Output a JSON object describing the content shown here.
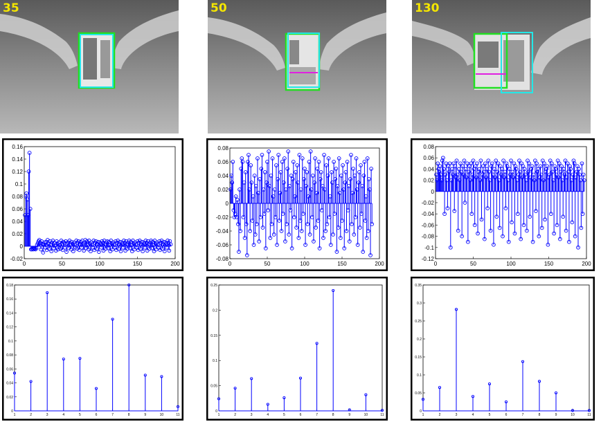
{
  "frames": [
    {
      "label": "35"
    },
    {
      "label": "50"
    },
    {
      "label": "130"
    }
  ],
  "colors": {
    "green_box": "#22e022",
    "cyan_box": "#22e8e8",
    "magenta_line": "#e020e0",
    "label_yellow": "#f5e600",
    "stem_blue": "#0000ff"
  },
  "chart_data": [
    {
      "type": "stem",
      "panel": "middle-left",
      "xlim": [
        0,
        200
      ],
      "ylim": [
        -0.02,
        0.16
      ],
      "xticks": [
        0,
        50,
        100,
        150,
        200
      ],
      "yticks": [
        -0.02,
        0,
        0.02,
        0.04,
        0.06,
        0.08,
        0.1,
        0.12,
        0.14,
        0.16
      ],
      "ytick_labels": [
        "-0.02",
        "0",
        "0.02",
        "0.04",
        "0.06",
        "0.08",
        "0.1",
        "0.12",
        "0.14",
        "0.16"
      ],
      "n": 190,
      "values": [
        0.05,
        0.08,
        0.085,
        0.075,
        0.05,
        0.12,
        0.15,
        0.06,
        -0.005,
        -0.005,
        -0.004,
        -0.005,
        -0.003,
        -0.004,
        -0.005,
        -0.003,
        0.002,
        0.005,
        0.008,
        0.01,
        0.005,
        -0.005,
        0.008,
        0.004,
        -0.01,
        0.003,
        0.006,
        -0.002,
        0.007,
        -0.006,
        0.01,
        0.004,
        -0.004,
        0.008,
        0.002,
        -0.008,
        0.006,
        0.009,
        -0.003,
        0.005,
        0.001,
        -0.007,
        0.008,
        0.004,
        -0.005,
        0.006,
        0.002,
        -0.004,
        0.009,
        0.003,
        -0.006,
        0.007,
        0.005,
        -0.002,
        0.008,
        -0.009,
        0.004,
        0.006,
        -0.003,
        0.009,
        0.002,
        -0.005,
        0.007,
        0.004,
        -0.008,
        0.006,
        0.003,
        -0.002,
        0.009,
        -0.004,
        0.005,
        0.008,
        -0.006,
        0.003,
        0.007,
        -0.002,
        0.009,
        0.004,
        -0.007,
        0.006,
        0.01,
        -0.003,
        0.008,
        0.002,
        -0.005,
        0.009,
        0.004,
        -0.008,
        0.006,
        0.003,
        -0.002,
        0.009,
        -0.006,
        0.005,
        0.008,
        -0.004,
        0.003,
        0.007,
        -0.009,
        0.006,
        0.004,
        -0.002,
        0.008,
        0.005,
        -0.007,
        0.009,
        0.003,
        -0.004,
        0.006,
        0.008,
        -0.003,
        0.007,
        0.002,
        -0.008,
        0.009,
        0.004,
        -0.005,
        0.006,
        0.003,
        -0.002,
        0.008,
        -0.006,
        0.005,
        0.009,
        -0.004,
        0.003,
        0.007,
        -0.008,
        0.006,
        0.004,
        -0.002,
        0.009,
        0.005,
        -0.007,
        0.008,
        0.003,
        -0.004,
        0.006,
        0.009,
        -0.003,
        0.007,
        0.002,
        -0.008,
        0.009,
        0.004,
        -0.005,
        0.006,
        0.003,
        -0.002,
        0.008,
        -0.006,
        0.005,
        0.009,
        -0.004,
        0.003,
        0.007,
        -0.008,
        0.006,
        0.004,
        -0.002,
        0.009,
        0.005,
        -0.007,
        0.008,
        0.003,
        -0.004,
        0.006,
        0.009,
        -0.003,
        0.007,
        0.002,
        -0.008,
        0.009,
        0.004,
        -0.005,
        0.006,
        0.003,
        -0.002,
        0.008,
        -0.006,
        0.005,
        0.009,
        -0.004,
        0.003,
        0.007,
        -0.008,
        0.006,
        0.004,
        -0.002,
        0.009,
        0.005,
        -0.007,
        0.008,
        0.003
      ]
    },
    {
      "type": "stem",
      "panel": "middle-center",
      "xlim": [
        0,
        200
      ],
      "ylim": [
        -0.08,
        0.08
      ],
      "xticks": [
        0,
        50,
        100,
        150,
        200
      ],
      "yticks": [
        -0.08,
        -0.06,
        -0.04,
        -0.02,
        0,
        0.02,
        0.04,
        0.06,
        0.08
      ],
      "ytick_labels": [
        "-0.08",
        "-0.06",
        "-0.04",
        "-0.02",
        "0",
        "0.02",
        "0.04",
        "0.06",
        "0.08"
      ],
      "n": 190,
      "values": [
        0.02,
        0.04,
        0.03,
        0.06,
        -0.01,
        -0.02,
        -0.015,
        0.01,
        -0.02,
        0.005,
        -0.03,
        -0.07,
        0.02,
        -0.04,
        0.05,
        0.065,
        0.06,
        -0.02,
        0.03,
        -0.05,
        0.045,
        -0.03,
        -0.075,
        0.06,
        0.07,
        0.02,
        -0.04,
        0.055,
        0.03,
        -0.025,
        0.01,
        -0.06,
        0.04,
        -0.045,
        0.025,
        -0.03,
        0.065,
        0.015,
        -0.055,
        0.035,
        -0.02,
        0.05,
        0.07,
        -0.035,
        0.02,
        -0.015,
        0.045,
        -0.065,
        0.03,
        0.06,
        -0.01,
        0.075,
        0.025,
        -0.05,
        0.04,
        -0.03,
        0.065,
        0.01,
        -0.045,
        0.02,
        -0.02,
        0.055,
        -0.06,
        0.035,
        0.07,
        -0.025,
        0.015,
        0.045,
        -0.04,
        0.06,
        -0.015,
        0.03,
        0.065,
        -0.055,
        0.02,
        -0.03,
        0.05,
        0.075,
        -0.045,
        0.025,
        -0.01,
        0.04,
        -0.065,
        0.035,
        0.06,
        -0.02,
        0.01,
        0.045,
        -0.035,
        0.055,
        0.03,
        -0.05,
        0.07,
        -0.025,
        0.02,
        -0.04,
        0.065,
        -0.015,
        0.035,
        0.05,
        -0.06,
        0.025,
        0.045,
        -0.03,
        0.01,
        0.06,
        -0.045,
        0.075,
        0.02,
        -0.02,
        0.04,
        -0.055,
        0.03,
        0.065,
        -0.035,
        0.015,
        0.05,
        -0.025,
        0.06,
        -0.065,
        0.035,
        0.045,
        -0.01,
        0.025,
        -0.05,
        0.07,
        0.02,
        -0.04,
        0.055,
        -0.03,
        0.04,
        0.065,
        -0.02,
        0.01,
        -0.06,
        0.045,
        0.03,
        -0.045,
        0.06,
        -0.015,
        0.035,
        0.05,
        -0.07,
        0.025,
        -0.035,
        0.065,
        0.015,
        -0.05,
        0.04,
        -0.025,
        0.055,
        0.02,
        -0.065,
        0.03,
        0.045,
        -0.04,
        0.06,
        -0.01,
        0.025,
        -0.055,
        0.035,
        0.07,
        -0.03,
        0.015,
        0.05,
        -0.045,
        0.04,
        -0.02,
        0.065,
        0.02,
        -0.06,
        0.03,
        0.045,
        -0.035,
        0.055,
        -0.015,
        0.025,
        -0.07,
        0.04,
        0.06,
        -0.025,
        0.01,
        -0.05,
        0.065,
        -0.04,
        0.035,
        0.02,
        -0.075,
        0.05,
        -0.03
      ]
    },
    {
      "type": "stem",
      "panel": "middle-right",
      "xlim": [
        0,
        200
      ],
      "ylim": [
        -0.12,
        0.08
      ],
      "xticks": [
        0,
        50,
        100,
        150,
        200
      ],
      "yticks": [
        -0.12,
        -0.1,
        -0.08,
        -0.06,
        -0.04,
        -0.02,
        0,
        0.02,
        0.04,
        0.06,
        0.08
      ],
      "ytick_labels": [
        "-0.12",
        "-0.1",
        "-0.08",
        "-0.06",
        "-0.04",
        "-0.02",
        "0",
        "0.02",
        "0.04",
        "0.06",
        "0.08"
      ],
      "n": 190,
      "values": [
        0.03,
        0.02,
        0.05,
        0.04,
        0.035,
        0.045,
        0.03,
        0.02,
        0.055,
        0.06,
        0.04,
        -0.04,
        0.03,
        0.05,
        0.02,
        -0.03,
        0.045,
        0.035,
        0.05,
        -0.1,
        0.02,
        0.04,
        0.03,
        0.05,
        -0.035,
        0.045,
        0.025,
        0.055,
        0.03,
        -0.07,
        0.04,
        0.02,
        0.05,
        0.035,
        -0.08,
        0.045,
        0.03,
        0.055,
        -0.02,
        0.04,
        0.025,
        0.05,
        -0.09,
        0.035,
        0.045,
        0.02,
        0.05,
        -0.04,
        0.03,
        0.055,
        0.04,
        -0.06,
        0.045,
        0.025,
        0.05,
        -0.075,
        0.035,
        0.04,
        0.02,
        0.055,
        -0.05,
        0.03,
        0.045,
        0.035,
        -0.085,
        0.05,
        0.025,
        0.04,
        -0.03,
        0.055,
        0.035,
        0.02,
        -0.07,
        0.045,
        0.05,
        0.03,
        -0.095,
        0.04,
        0.025,
        0.055,
        -0.045,
        0.035,
        0.05,
        0.02,
        -0.065,
        0.045,
        0.03,
        0.04,
        -0.08,
        0.055,
        0.025,
        0.035,
        -0.03,
        0.05,
        0.045,
        0.02,
        -0.09,
        0.04,
        0.03,
        0.055,
        -0.055,
        0.035,
        0.025,
        0.05,
        -0.075,
        0.045,
        0.04,
        0.02,
        -0.04,
        0.03,
        0.055,
        0.035,
        -0.085,
        0.05,
        0.025,
        0.045,
        -0.06,
        0.04,
        0.03,
        0.02,
        -0.07,
        0.055,
        0.035,
        0.05,
        -0.045,
        0.025,
        0.04,
        0.045,
        -0.09,
        0.03,
        0.02,
        0.055,
        -0.035,
        0.05,
        0.035,
        0.04,
        -0.08,
        0.025,
        0.045,
        0.03,
        -0.065,
        0.055,
        0.02,
        0.05,
        -0.05,
        0.035,
        0.04,
        0.045,
        -0.095,
        0.025,
        0.03,
        0.055,
        -0.04,
        0.05,
        0.035,
        0.02,
        -0.075,
        0.045,
        0.04,
        0.03,
        -0.06,
        0.055,
        0.025,
        0.05,
        -0.085,
        0.035,
        0.045,
        0.02,
        -0.045,
        0.04,
        0.03,
        0.055,
        -0.07,
        0.025,
        0.05,
        0.035,
        -0.09,
        0.045,
        0.04,
        0.02,
        -0.055,
        0.03,
        0.055,
        0.05,
        -0.08,
        0.025,
        0.035,
        0.045,
        -0.1,
        0.04,
        0.03,
        0.02,
        -0.065,
        0.05,
        -0.04,
        0.03,
        0.02
      ]
    },
    {
      "type": "stem",
      "panel": "bottom-left",
      "xlim": [
        1,
        11
      ],
      "ylim": [
        0,
        0.18
      ],
      "xticks": [
        1,
        2,
        3,
        4,
        5,
        6,
        7,
        8,
        9,
        10,
        11
      ],
      "yticks": [
        0,
        0.02,
        0.04,
        0.06,
        0.08,
        0.1,
        0.12,
        0.14,
        0.16,
        0.18
      ],
      "ytick_labels": [
        "0",
        "0.02",
        "0.04",
        "0.06",
        "0.08",
        "0.1",
        "0.12",
        "0.14",
        "0.16",
        "0.18"
      ],
      "x": [
        1,
        2,
        3,
        4,
        5,
        6,
        7,
        8,
        9,
        10,
        11
      ],
      "values": [
        0.054,
        0.042,
        0.169,
        0.074,
        0.075,
        0.032,
        0.131,
        0.18,
        0.051,
        0.049,
        0.006
      ]
    },
    {
      "type": "stem",
      "panel": "bottom-center",
      "xlim": [
        1,
        11
      ],
      "ylim": [
        0,
        0.25
      ],
      "xticks": [
        1,
        2,
        3,
        4,
        5,
        6,
        7,
        8,
        9,
        10,
        11
      ],
      "yticks": [
        0,
        0.05,
        0.1,
        0.15,
        0.2,
        0.25
      ],
      "ytick_labels": [
        "0",
        "0.05",
        "0.1",
        "0.15",
        "0.2",
        "0.25"
      ],
      "x": [
        1,
        2,
        3,
        4,
        5,
        6,
        7,
        8,
        9,
        10,
        11
      ],
      "values": [
        0.024,
        0.045,
        0.064,
        0.013,
        0.026,
        0.065,
        0.134,
        0.239,
        0.002,
        0.032,
        0.001
      ]
    },
    {
      "type": "stem",
      "panel": "bottom-right",
      "xlim": [
        1,
        11
      ],
      "ylim": [
        0,
        0.35
      ],
      "xticks": [
        1,
        2,
        3,
        4,
        5,
        6,
        7,
        8,
        9,
        10,
        11
      ],
      "yticks": [
        0,
        0.05,
        0.1,
        0.15,
        0.2,
        0.25,
        0.3,
        0.35
      ],
      "ytick_labels": [
        "0",
        "0.05",
        "0.1",
        "0.15",
        "0.2",
        "0.25",
        "0.3",
        "0.35"
      ],
      "x": [
        1,
        2,
        3,
        4,
        5,
        6,
        7,
        8,
        9,
        10,
        11
      ],
      "values": [
        0.032,
        0.065,
        0.282,
        0.04,
        0.075,
        0.025,
        0.137,
        0.082,
        0.05,
        0.001,
        0.001
      ]
    }
  ]
}
